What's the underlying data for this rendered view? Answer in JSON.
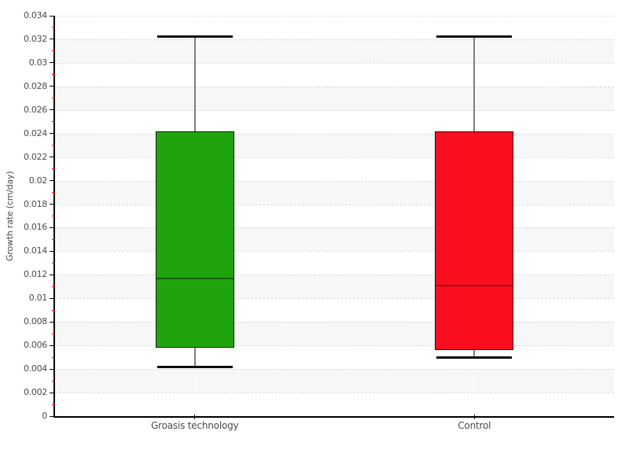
{
  "chart_data": {
    "type": "box",
    "title": "",
    "xlabel": "",
    "ylabel": "Growth rate (cm/day)",
    "ylim": [
      0,
      0.034
    ],
    "y_major_step": 0.002,
    "y_minor_step": 0.001,
    "y_tick_labels": [
      "0",
      "0.002",
      "0.004",
      "0.006",
      "0.008",
      "0.01",
      "0.012",
      "0.014",
      "0.016",
      "0.018",
      "0.02",
      "0.022",
      "0.024",
      "0.026",
      "0.028",
      "0.03",
      "0.032",
      "0.034"
    ],
    "categories": [
      "Groasis technology",
      "Control"
    ],
    "series": [
      {
        "name": "Groasis technology",
        "min": 0.0042,
        "q1": 0.0058,
        "median": 0.0117,
        "q3": 0.0242,
        "max": 0.0322,
        "fill": "#20A40E",
        "median_color": "#14600A"
      },
      {
        "name": "Control",
        "min": 0.005,
        "q1": 0.0056,
        "median": 0.0111,
        "q3": 0.0242,
        "max": 0.0322,
        "fill": "#FA0D1E",
        "median_color": "#9B0A14"
      }
    ],
    "grid": {
      "horizontal_style": "dashed",
      "band_fill": "#f7f7f7",
      "line_color": "#dedede",
      "vertical_line_color": "#ffffff"
    },
    "colors": {
      "axis": "#000000",
      "tick_label": "#4a4a4a",
      "minor_tick": "#ff0000",
      "whisker_cap": "#0d0d0d",
      "whisker_stem": "#7f7f7f",
      "box_border": "#1a1a1a",
      "background": "#ffffff"
    },
    "legend": "none"
  }
}
